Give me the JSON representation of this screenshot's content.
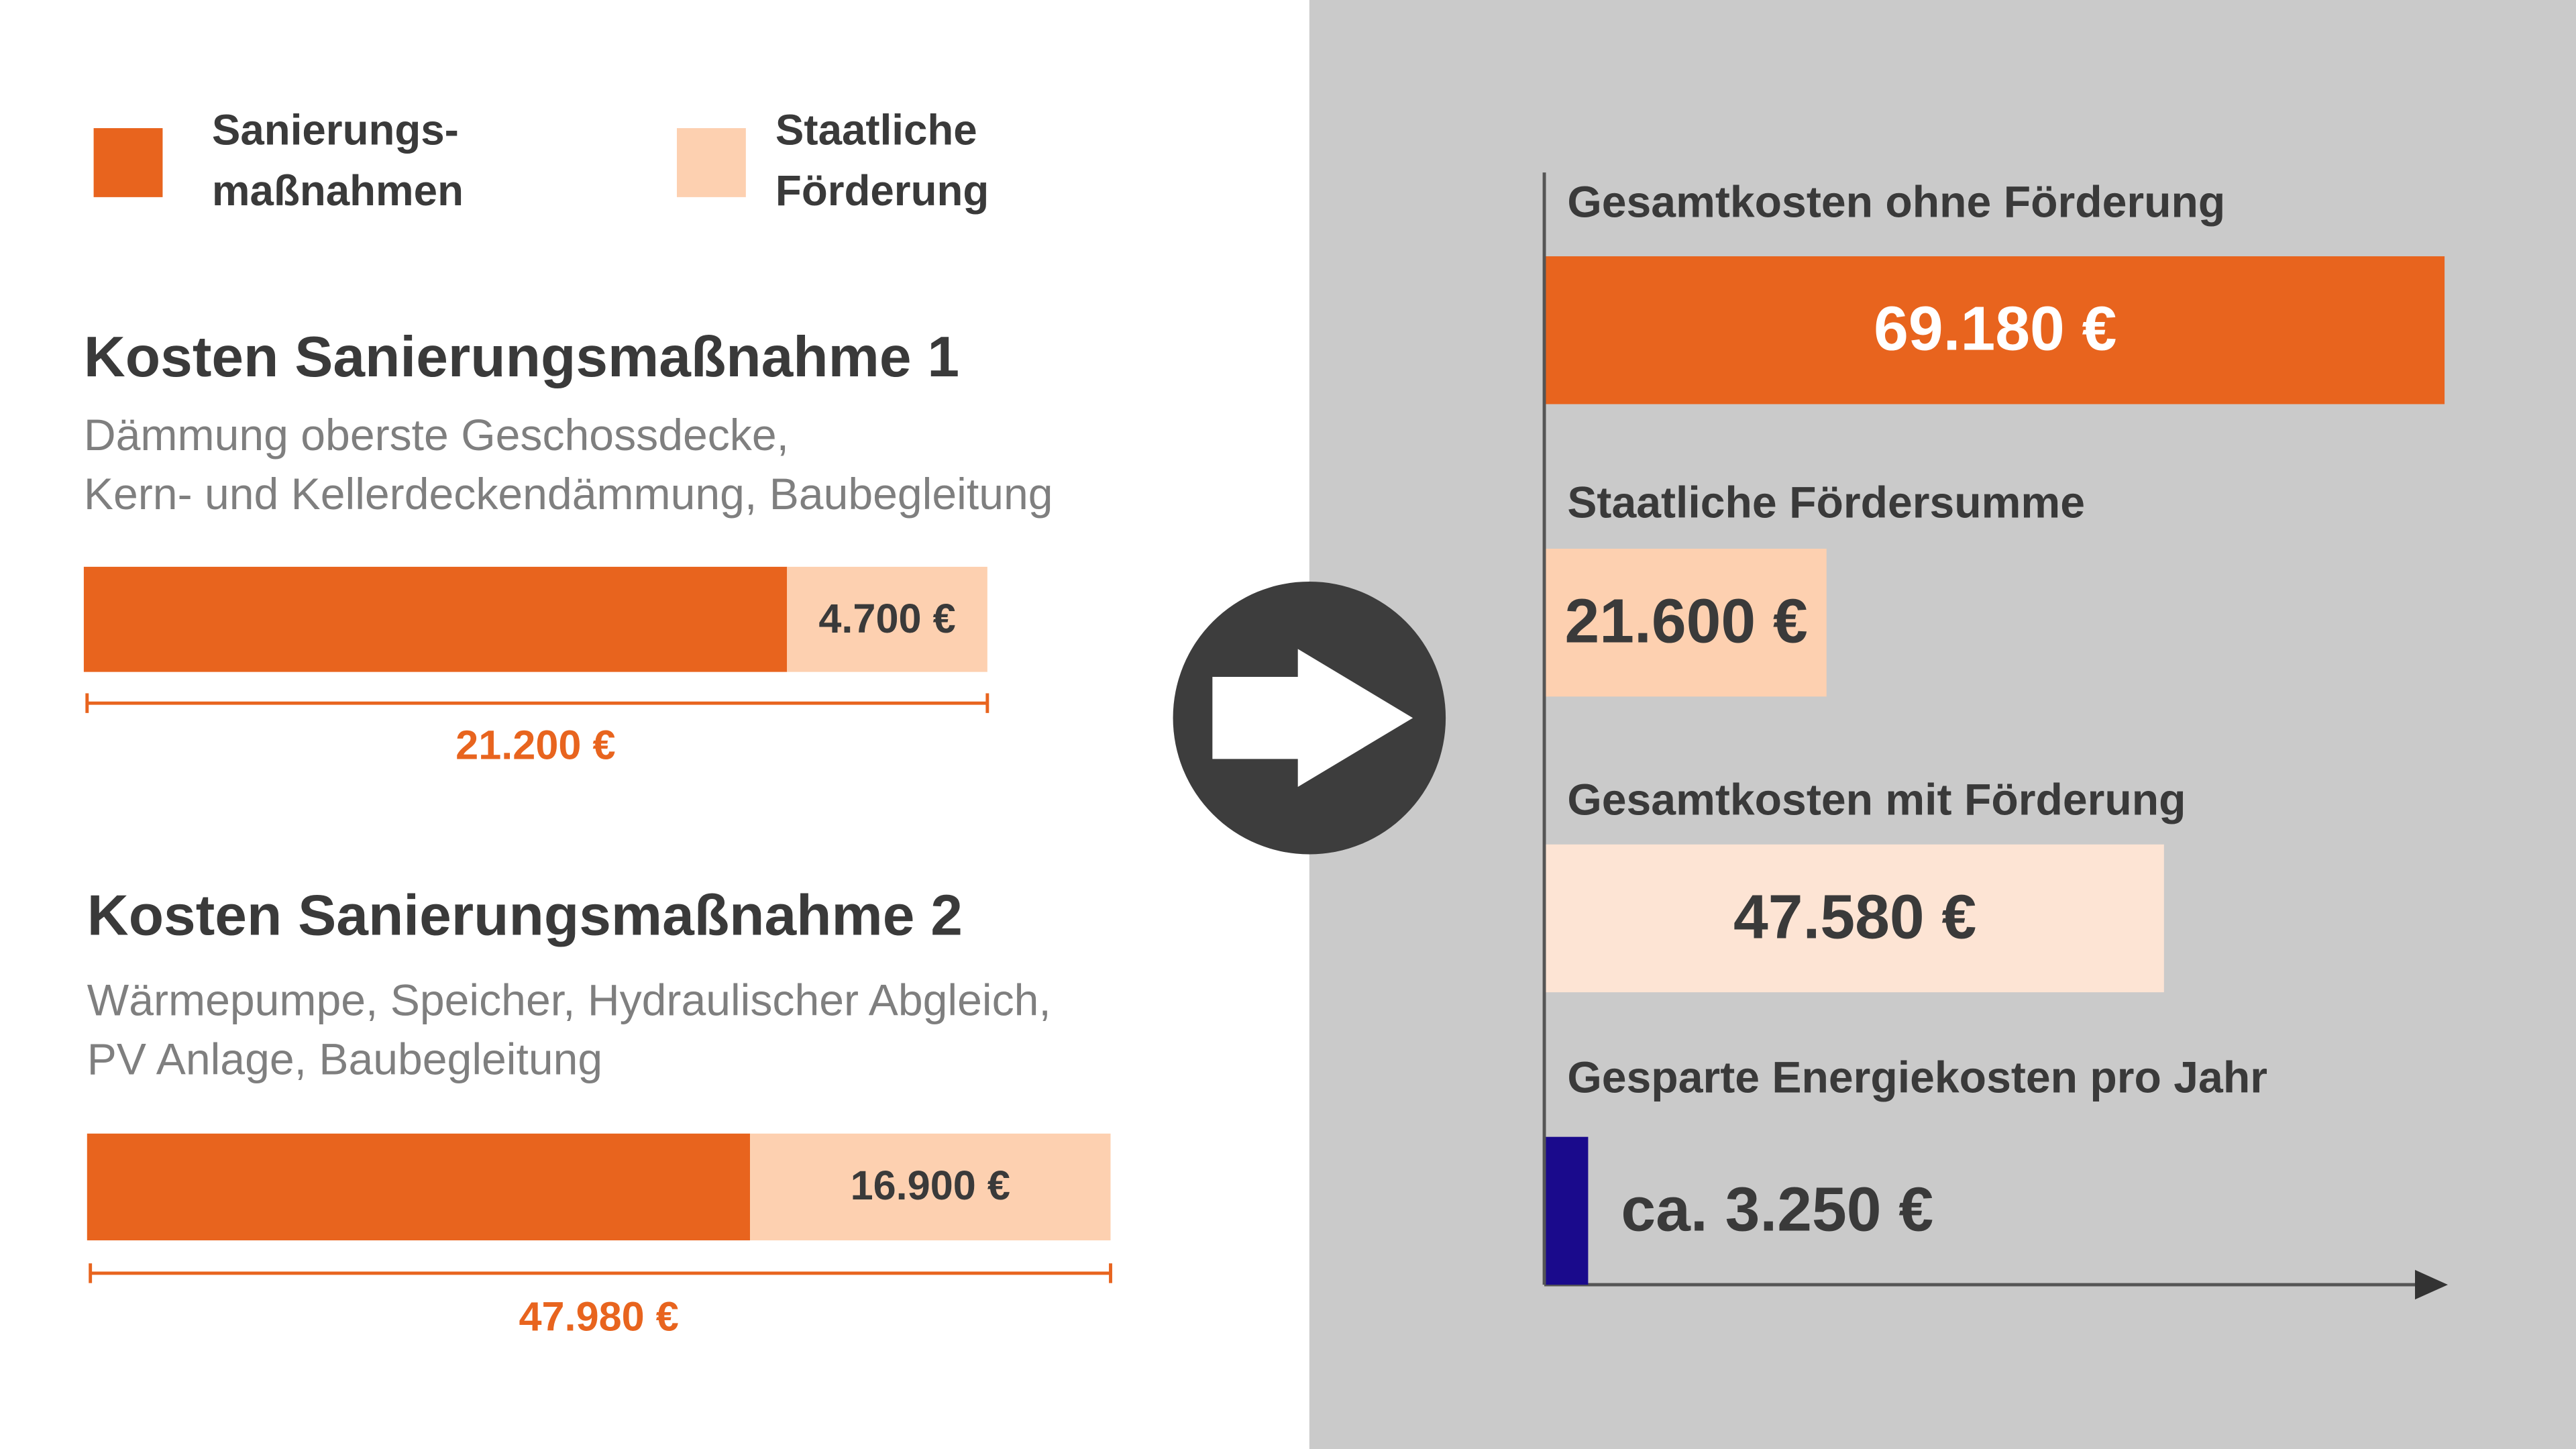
{
  "legend": [
    {
      "name": "Sanierungs-\nmaßnahmen",
      "color": "#e8641e"
    },
    {
      "name": "Staatliche\nFörderung",
      "color": "#fdd0b0"
    }
  ],
  "chart_data": [
    {
      "type": "stacked-bar",
      "title": "Kosten Sanierungsmaßnahme 1",
      "subtitle": "Dämmung oberste Geschossdecke,\nKern- und Kellerdeckendämmung, Baubegleitung",
      "series": [
        {
          "values": [
            16500
          ]
        },
        {
          "values": [
            4700
          ],
          "value_labels": [
            "4.700 €"
          ]
        }
      ],
      "total": {
        "value": 21200,
        "label": "21.200 €"
      },
      "xlim": [
        0,
        21200
      ]
    },
    {
      "type": "stacked-bar",
      "title": "Kosten Sanierungsmaßnahme 2",
      "subtitle": "Wärmepumpe, Speicher, Hydraulischer Abgleich,\nPV Anlage, Baubegleitung",
      "series": [
        {
          "values": [
            31080
          ]
        },
        {
          "values": [
            16900
          ],
          "value_labels": [
            "16.900 €"
          ]
        }
      ],
      "total": {
        "value": 47980,
        "label": "47.980 €"
      },
      "xlim": [
        0,
        47980
      ]
    },
    {
      "type": "hbar",
      "categories": [
        "Gesamtkosten ohne Förderung",
        "Staatliche Fördersumme",
        "Gesamtkosten mit Förderung",
        "Gesparte Energiekosten pro Jahr"
      ],
      "values": [
        69180,
        21600,
        47580,
        3250
      ],
      "value_labels": [
        "69.180 €",
        "21.600 €",
        "47.580 €",
        "ca. 3.250 €"
      ],
      "colors": [
        "#e8641e",
        "#fdd0b0",
        "#fde4d4",
        "#1a0a8c"
      ],
      "xlim": [
        0,
        69180
      ]
    }
  ]
}
